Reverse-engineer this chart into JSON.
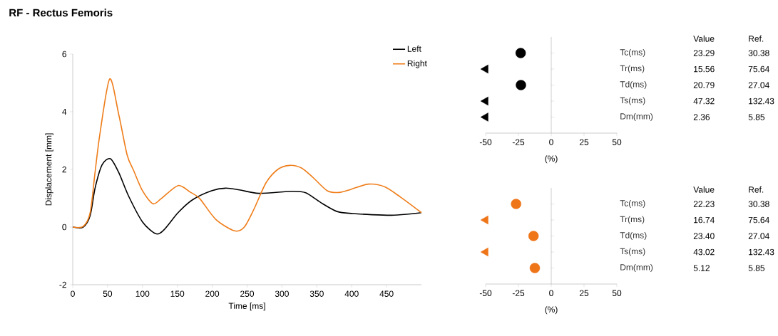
{
  "chart_data": [
    {
      "type": "line",
      "title": "RF - Rectus Femoris",
      "xlabel": "Time [ms]",
      "ylabel": "Displacement [mm]",
      "xlim": [
        0,
        500
      ],
      "ylim": [
        -2,
        6
      ],
      "xticks": [
        0,
        50,
        100,
        150,
        200,
        250,
        300,
        350,
        400,
        450
      ],
      "yticks": [
        -2,
        0,
        2,
        4,
        6
      ],
      "legend": "top right",
      "series": [
        {
          "name": "Left",
          "color": "#000000",
          "x": [
            0,
            15,
            25,
            32,
            42,
            54,
            66,
            80,
            100,
            119,
            131,
            151,
            172,
            199,
            219,
            239,
            267,
            314,
            334,
            355,
            379,
            402,
            429,
            457,
            481,
            500
          ],
          "values": [
            0,
            0,
            0.4,
            1.35,
            2.16,
            2.37,
            1.89,
            1.08,
            0.18,
            -0.23,
            -0.09,
            0.5,
            0.95,
            1.26,
            1.35,
            1.29,
            1.17,
            1.24,
            1.19,
            0.86,
            0.54,
            0.47,
            0.43,
            0.41,
            0.45,
            0.5
          ]
        },
        {
          "name": "Right",
          "color": "#ef7d1a",
          "x": [
            0,
            15,
            25,
            32,
            39,
            53,
            66,
            78,
            87,
            100,
            115,
            127,
            151,
            168,
            182,
            205,
            232,
            246,
            260,
            277,
            294,
            311,
            328,
            345,
            365,
            382,
            399,
            424,
            447,
            470,
            500
          ],
          "values": [
            0,
            0.02,
            0.5,
            1.9,
            3.24,
            5.14,
            3.9,
            2.5,
            1.98,
            1.26,
            0.81,
            0.99,
            1.44,
            1.22,
            0.99,
            0.27,
            -0.13,
            0,
            0.63,
            1.53,
            2.0,
            2.14,
            2.05,
            1.71,
            1.26,
            1.2,
            1.31,
            1.49,
            1.4,
            1.04,
            0.5
          ]
        }
      ]
    },
    {
      "type": "scatter",
      "orientation": "horizontal",
      "categories": [
        "Tc(ms)",
        "Tr(ms)",
        "Td(ms)",
        "Ts(ms)",
        "Dm(mm)"
      ],
      "xlabel": "(%)",
      "xlim": [
        -50,
        50
      ],
      "xticks": [
        -50,
        -25,
        0,
        25,
        50
      ],
      "series": [
        {
          "color": "#000000",
          "marker": "circle",
          "values": [
            -23.3,
            null,
            -23.1,
            null,
            null
          ]
        },
        {
          "color": "#000000",
          "marker": "triangle",
          "values": [
            null,
            -50,
            null,
            -50,
            -50
          ]
        }
      ],
      "annotations": [
        "Value",
        "Ref.",
        "23.29",
        "30.38",
        "15.56",
        "75.64",
        "20.79",
        "27.04",
        "47.32",
        "132.43",
        "2.36",
        "5.85"
      ]
    },
    {
      "type": "scatter",
      "orientation": "horizontal",
      "categories": [
        "Tc(ms)",
        "Tr(ms)",
        "Td(ms)",
        "Ts(ms)",
        "Dm(mm)"
      ],
      "xlabel": "(%)",
      "xlim": [
        -50,
        50
      ],
      "xticks": [
        -50,
        -25,
        0,
        25,
        50
      ],
      "series": [
        {
          "color": "#ee7518",
          "marker": "circle",
          "values": [
            -26.8,
            null,
            -13.5,
            null,
            -12.5
          ]
        },
        {
          "color": "#ee7518",
          "marker": "triangle",
          "values": [
            null,
            -50,
            null,
            -50,
            null
          ]
        }
      ],
      "annotations": [
        "Value",
        "Ref.",
        "22.23",
        "30.38",
        "16.74",
        "75.64",
        "23.40",
        "27.04",
        "43.02",
        "132.43",
        "5.12",
        "5.85"
      ]
    }
  ]
}
